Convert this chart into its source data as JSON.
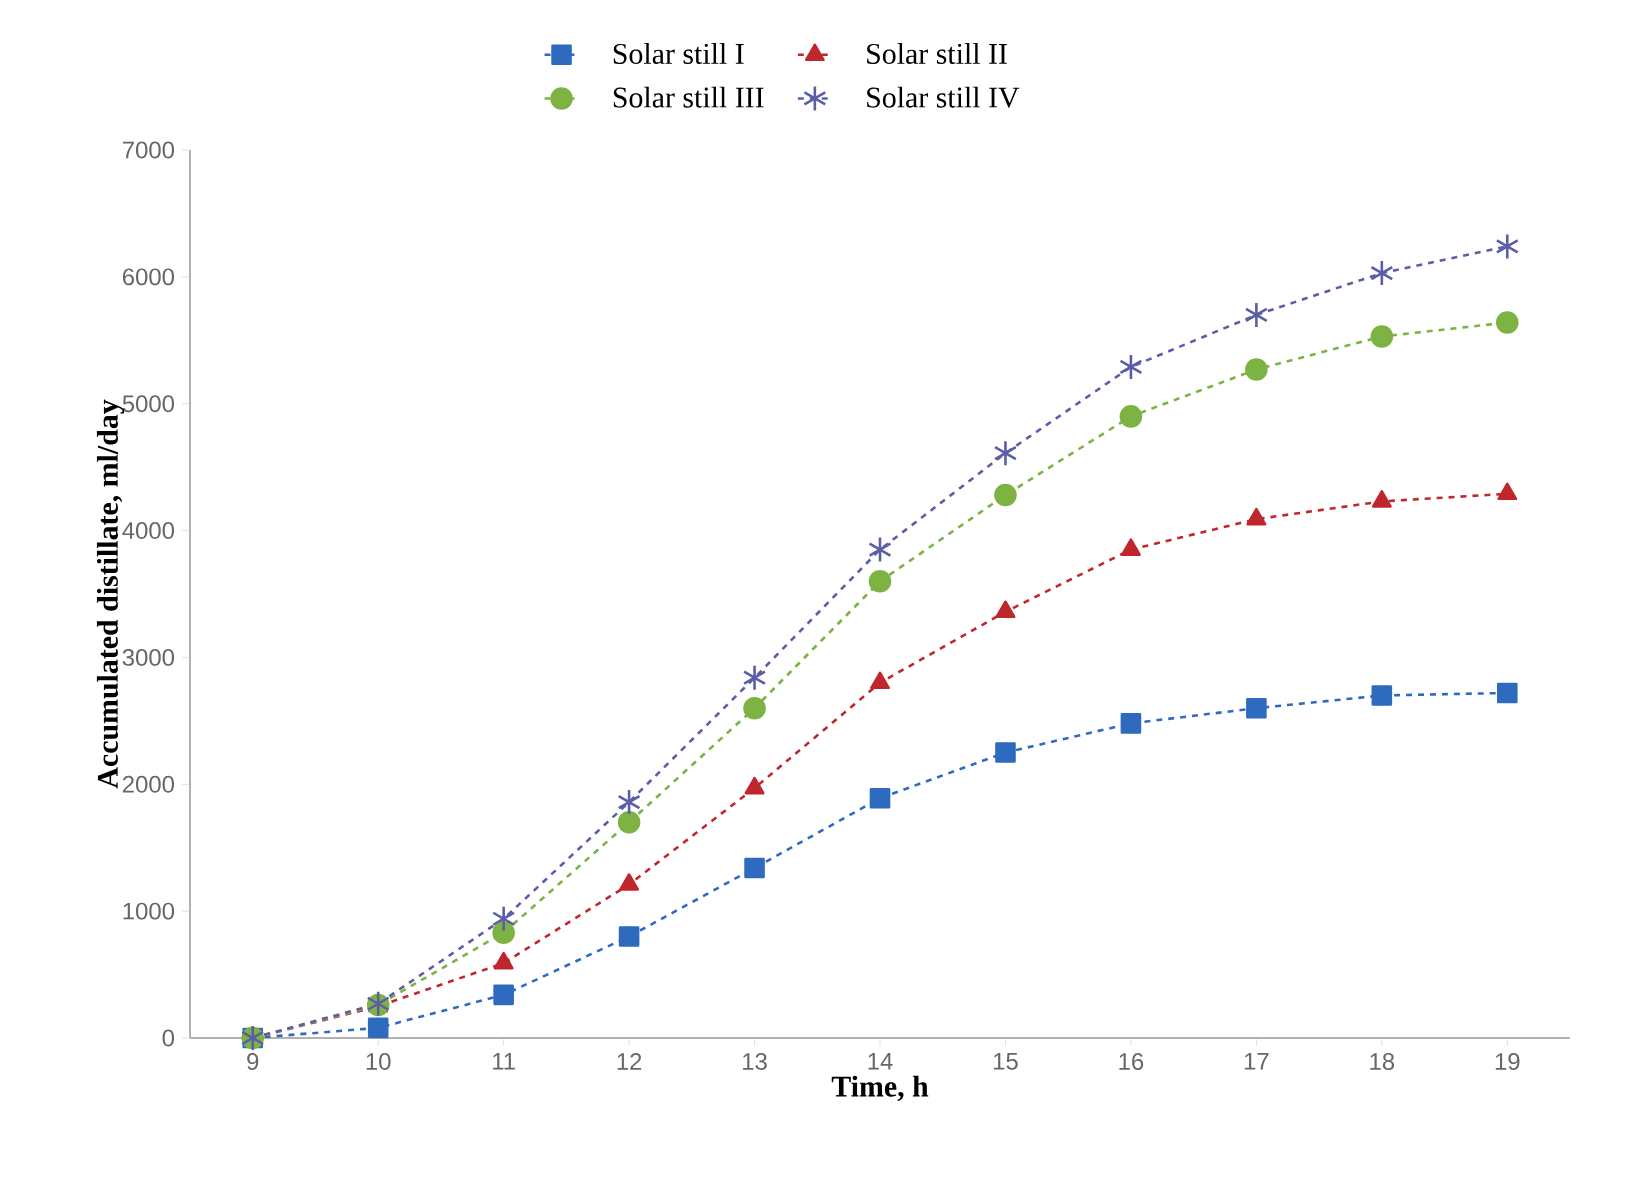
{
  "chart_data": {
    "type": "line",
    "xlabel": "Time, h",
    "ylabel": "Accumulated distillate, ml/day",
    "categories": [
      "9",
      "10",
      "11",
      "12",
      "13",
      "14",
      "15",
      "16",
      "17",
      "18",
      "19"
    ],
    "ylim": [
      0,
      7000
    ],
    "yticks": [
      0,
      1000,
      2000,
      3000,
      4000,
      5000,
      6000,
      7000
    ],
    "grid": false,
    "legend": "top",
    "series": [
      {
        "name": "Solar still I",
        "color": "#2e6bbf",
        "marker": "square",
        "line_style": "dashed",
        "values": [
          0,
          80,
          340,
          800,
          1340,
          1890,
          2250,
          2480,
          2600,
          2700,
          2720
        ]
      },
      {
        "name": "Solar still II",
        "color": "#c0272d",
        "marker": "triangle",
        "line_style": "dashed",
        "values": [
          0,
          250,
          590,
          1210,
          1970,
          2800,
          3360,
          3850,
          4090,
          4230,
          4290
        ]
      },
      {
        "name": "Solar still III",
        "color": "#7cb342",
        "marker": "circle",
        "line_style": "dashed",
        "values": [
          0,
          260,
          830,
          1700,
          2600,
          3600,
          4280,
          4900,
          5270,
          5530,
          5640
        ]
      },
      {
        "name": "Solar still IV",
        "color": "#5b5ea6",
        "marker": "cross",
        "line_style": "dashed",
        "values": [
          0,
          270,
          940,
          1860,
          2840,
          3850,
          4610,
          5290,
          5700,
          6030,
          6240
        ]
      }
    ]
  }
}
